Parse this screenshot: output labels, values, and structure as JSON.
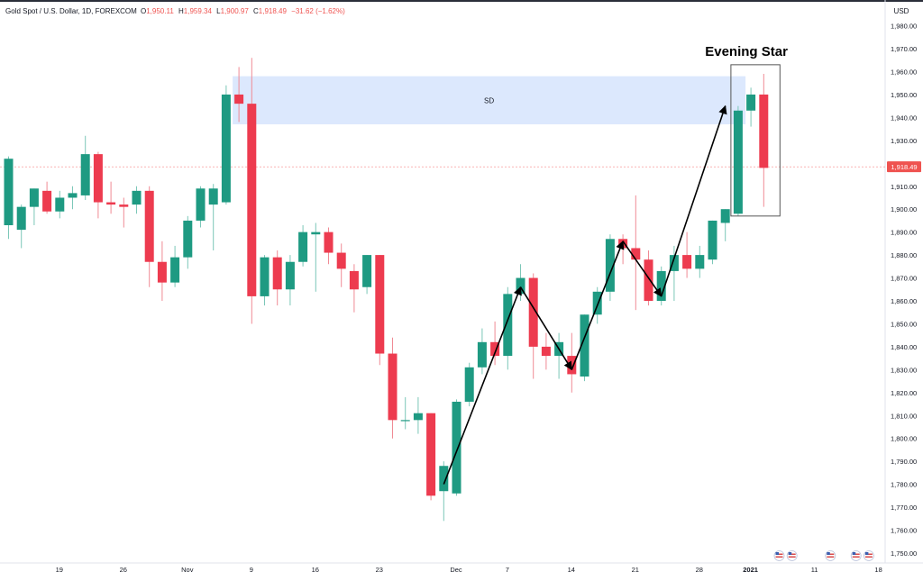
{
  "header": {
    "symbol": "Gold Spot / U.S. Dollar, 1D, FOREXCOM",
    "ohlc": [
      {
        "key": "O",
        "value": "1,950.11"
      },
      {
        "key": "H",
        "value": "1,959.34"
      },
      {
        "key": "L",
        "value": "1,900.97"
      },
      {
        "key": "C",
        "value": "1,918.49"
      },
      {
        "key": "",
        "value": "−31.62 (−1.62%)"
      }
    ]
  },
  "currency": "USD",
  "last_price_label": "1,918.49",
  "colors": {
    "up": "#26a69a",
    "up_fill": "#1e9a82",
    "down": "#ef5350",
    "down_fill": "#ed3b4f",
    "zone": "#d6e4fd",
    "grid_text": "#131722",
    "axis_line": "#e0e3eb",
    "price_line": "#ef5350"
  },
  "annotations": {
    "zone_label": "SD",
    "pattern_label": "Evening Star"
  },
  "chart_data": {
    "type": "candlestick",
    "instrument": "Gold Spot / U.S. Dollar",
    "timeframe": "1D",
    "ylim": [
      1745,
      1990
    ],
    "y_ticks": [
      1750,
      1760,
      1770,
      1780,
      1790,
      1800,
      1810,
      1820,
      1830,
      1840,
      1850,
      1860,
      1870,
      1880,
      1890,
      1900,
      1910,
      1920,
      1930,
      1940,
      1950,
      1960,
      1970,
      1980
    ],
    "y_tick_labels": [
      "1,750.00",
      "1,760.00",
      "1,770.00",
      "1,780.00",
      "1,790.00",
      "1,800.00",
      "1,810.00",
      "1,820.00",
      "1,830.00",
      "1,840.00",
      "1,850.00",
      "1,860.00",
      "1,870.00",
      "1,880.00",
      "1,890.00",
      "1,900.00",
      "1,910.00",
      "1,920.00",
      "1,930.00",
      "1,940.00",
      "1,950.00",
      "1,960.00",
      "1,970.00",
      "1,980.00"
    ],
    "x_tick_labels": [
      {
        "label": "19",
        "index": 4
      },
      {
        "label": "26",
        "index": 9
      },
      {
        "label": "Nov",
        "index": 14
      },
      {
        "label": "9",
        "index": 19
      },
      {
        "label": "16",
        "index": 24
      },
      {
        "label": "23",
        "index": 29
      },
      {
        "label": "Dec",
        "index": 35
      },
      {
        "label": "7",
        "index": 39
      },
      {
        "label": "14",
        "index": 44
      },
      {
        "label": "21",
        "index": 49
      },
      {
        "label": "28",
        "index": 54
      },
      {
        "label": "2021",
        "index": 58,
        "bold": true
      },
      {
        "label": "11",
        "index": 63
      },
      {
        "label": "18",
        "index": 68
      }
    ],
    "candles": [
      {
        "o": 1893,
        "h": 1923,
        "l": 1887,
        "c": 1922
      },
      {
        "o": 1891,
        "h": 1902,
        "l": 1883,
        "c": 1901
      },
      {
        "o": 1901,
        "h": 1909,
        "l": 1893,
        "c": 1909
      },
      {
        "o": 1908,
        "h": 1912,
        "l": 1898,
        "c": 1899
      },
      {
        "o": 1899,
        "h": 1908,
        "l": 1896,
        "c": 1905
      },
      {
        "o": 1905,
        "h": 1910,
        "l": 1900,
        "c": 1907
      },
      {
        "o": 1906,
        "h": 1932,
        "l": 1904,
        "c": 1924
      },
      {
        "o": 1924,
        "h": 1925,
        "l": 1896,
        "c": 1903
      },
      {
        "o": 1903,
        "h": 1912,
        "l": 1898,
        "c": 1902
      },
      {
        "o": 1902,
        "h": 1905,
        "l": 1892,
        "c": 1901
      },
      {
        "o": 1902,
        "h": 1910,
        "l": 1898,
        "c": 1908
      },
      {
        "o": 1908,
        "h": 1910,
        "l": 1866,
        "c": 1877
      },
      {
        "o": 1877,
        "h": 1886,
        "l": 1860,
        "c": 1868
      },
      {
        "o": 1868,
        "h": 1884,
        "l": 1866,
        "c": 1879
      },
      {
        "o": 1879,
        "h": 1897,
        "l": 1874,
        "c": 1895
      },
      {
        "o": 1895,
        "h": 1910,
        "l": 1892,
        "c": 1909
      },
      {
        "o": 1902,
        "h": 1911,
        "l": 1882,
        "c": 1909
      },
      {
        "o": 1903,
        "h": 1954,
        "l": 1902,
        "c": 1950
      },
      {
        "o": 1950,
        "h": 1962,
        "l": 1938,
        "c": 1946
      },
      {
        "o": 1946,
        "h": 1966,
        "l": 1850,
        "c": 1862
      },
      {
        "o": 1862,
        "h": 1880,
        "l": 1858,
        "c": 1879
      },
      {
        "o": 1879,
        "h": 1882,
        "l": 1858,
        "c": 1865
      },
      {
        "o": 1865,
        "h": 1880,
        "l": 1858,
        "c": 1877
      },
      {
        "o": 1877,
        "h": 1893,
        "l": 1875,
        "c": 1890
      },
      {
        "o": 1889,
        "h": 1894,
        "l": 1864,
        "c": 1890
      },
      {
        "o": 1890,
        "h": 1892,
        "l": 1876,
        "c": 1881
      },
      {
        "o": 1881,
        "h": 1885,
        "l": 1866,
        "c": 1874
      },
      {
        "o": 1873,
        "h": 1876,
        "l": 1855,
        "c": 1865
      },
      {
        "o": 1866,
        "h": 1880,
        "l": 1863,
        "c": 1880
      },
      {
        "o": 1880,
        "h": 1880,
        "l": 1832,
        "c": 1837
      },
      {
        "o": 1837,
        "h": 1844,
        "l": 1800,
        "c": 1808
      },
      {
        "o": 1808,
        "h": 1818,
        "l": 1804,
        "c": 1808
      },
      {
        "o": 1808,
        "h": 1818,
        "l": 1802,
        "c": 1811
      },
      {
        "o": 1811,
        "h": 1811,
        "l": 1773,
        "c": 1775
      },
      {
        "o": 1777,
        "h": 1790,
        "l": 1764,
        "c": 1788
      },
      {
        "o": 1776,
        "h": 1817,
        "l": 1775,
        "c": 1816
      },
      {
        "o": 1816,
        "h": 1833,
        "l": 1814,
        "c": 1831
      },
      {
        "o": 1831,
        "h": 1848,
        "l": 1828,
        "c": 1842
      },
      {
        "o": 1842,
        "h": 1851,
        "l": 1832,
        "c": 1836
      },
      {
        "o": 1836,
        "h": 1866,
        "l": 1830,
        "c": 1863
      },
      {
        "o": 1863,
        "h": 1876,
        "l": 1860,
        "c": 1870
      },
      {
        "o": 1870,
        "h": 1872,
        "l": 1826,
        "c": 1840
      },
      {
        "o": 1840,
        "h": 1846,
        "l": 1830,
        "c": 1836
      },
      {
        "o": 1836,
        "h": 1846,
        "l": 1826,
        "c": 1842
      },
      {
        "o": 1836,
        "h": 1846,
        "l": 1820,
        "c": 1828
      },
      {
        "o": 1827,
        "h": 1854,
        "l": 1825,
        "c": 1854
      },
      {
        "o": 1854,
        "h": 1866,
        "l": 1850,
        "c": 1864
      },
      {
        "o": 1864,
        "h": 1889,
        "l": 1860,
        "c": 1887
      },
      {
        "o": 1887,
        "h": 1889,
        "l": 1876,
        "c": 1883
      },
      {
        "o": 1883,
        "h": 1906,
        "l": 1856,
        "c": 1878
      },
      {
        "o": 1878,
        "h": 1882,
        "l": 1858,
        "c": 1860
      },
      {
        "o": 1860,
        "h": 1875,
        "l": 1858,
        "c": 1873
      },
      {
        "o": 1873,
        "h": 1884,
        "l": 1860,
        "c": 1880
      },
      {
        "o": 1880,
        "h": 1890,
        "l": 1870,
        "c": 1874
      },
      {
        "o": 1874,
        "h": 1884,
        "l": 1870,
        "c": 1880
      },
      {
        "o": 1878,
        "h": 1895,
        "l": 1876,
        "c": 1895
      },
      {
        "o": 1894,
        "h": 1900,
        "l": 1886,
        "c": 1900
      },
      {
        "o": 1898,
        "h": 1945,
        "l": 1897,
        "c": 1943
      },
      {
        "o": 1943,
        "h": 1953,
        "l": 1936,
        "c": 1950
      },
      {
        "o": 1950,
        "h": 1959,
        "l": 1901,
        "c": 1918
      }
    ],
    "supply_demand_zone": {
      "label": "SD",
      "from_index": 18,
      "to_index": 58,
      "low": 1937,
      "high": 1958
    },
    "pattern_box": {
      "label": "Evening Star",
      "from_index": 57,
      "to_index": 59,
      "low": 1897,
      "high": 1963
    },
    "arrows": [
      {
        "from": {
          "index": 34,
          "price": 1780
        },
        "to": {
          "index": 40,
          "price": 1866
        }
      },
      {
        "from": {
          "index": 40,
          "price": 1866
        },
        "to": {
          "index": 44,
          "price": 1830
        }
      },
      {
        "from": {
          "index": 44,
          "price": 1830
        },
        "to": {
          "index": 48,
          "price": 1886
        }
      },
      {
        "from": {
          "index": 48,
          "price": 1886
        },
        "to": {
          "index": 51,
          "price": 1862
        }
      },
      {
        "from": {
          "index": 51,
          "price": 1862
        },
        "to": {
          "index": 56,
          "price": 1945
        }
      }
    ],
    "last_price": 1918.49
  }
}
